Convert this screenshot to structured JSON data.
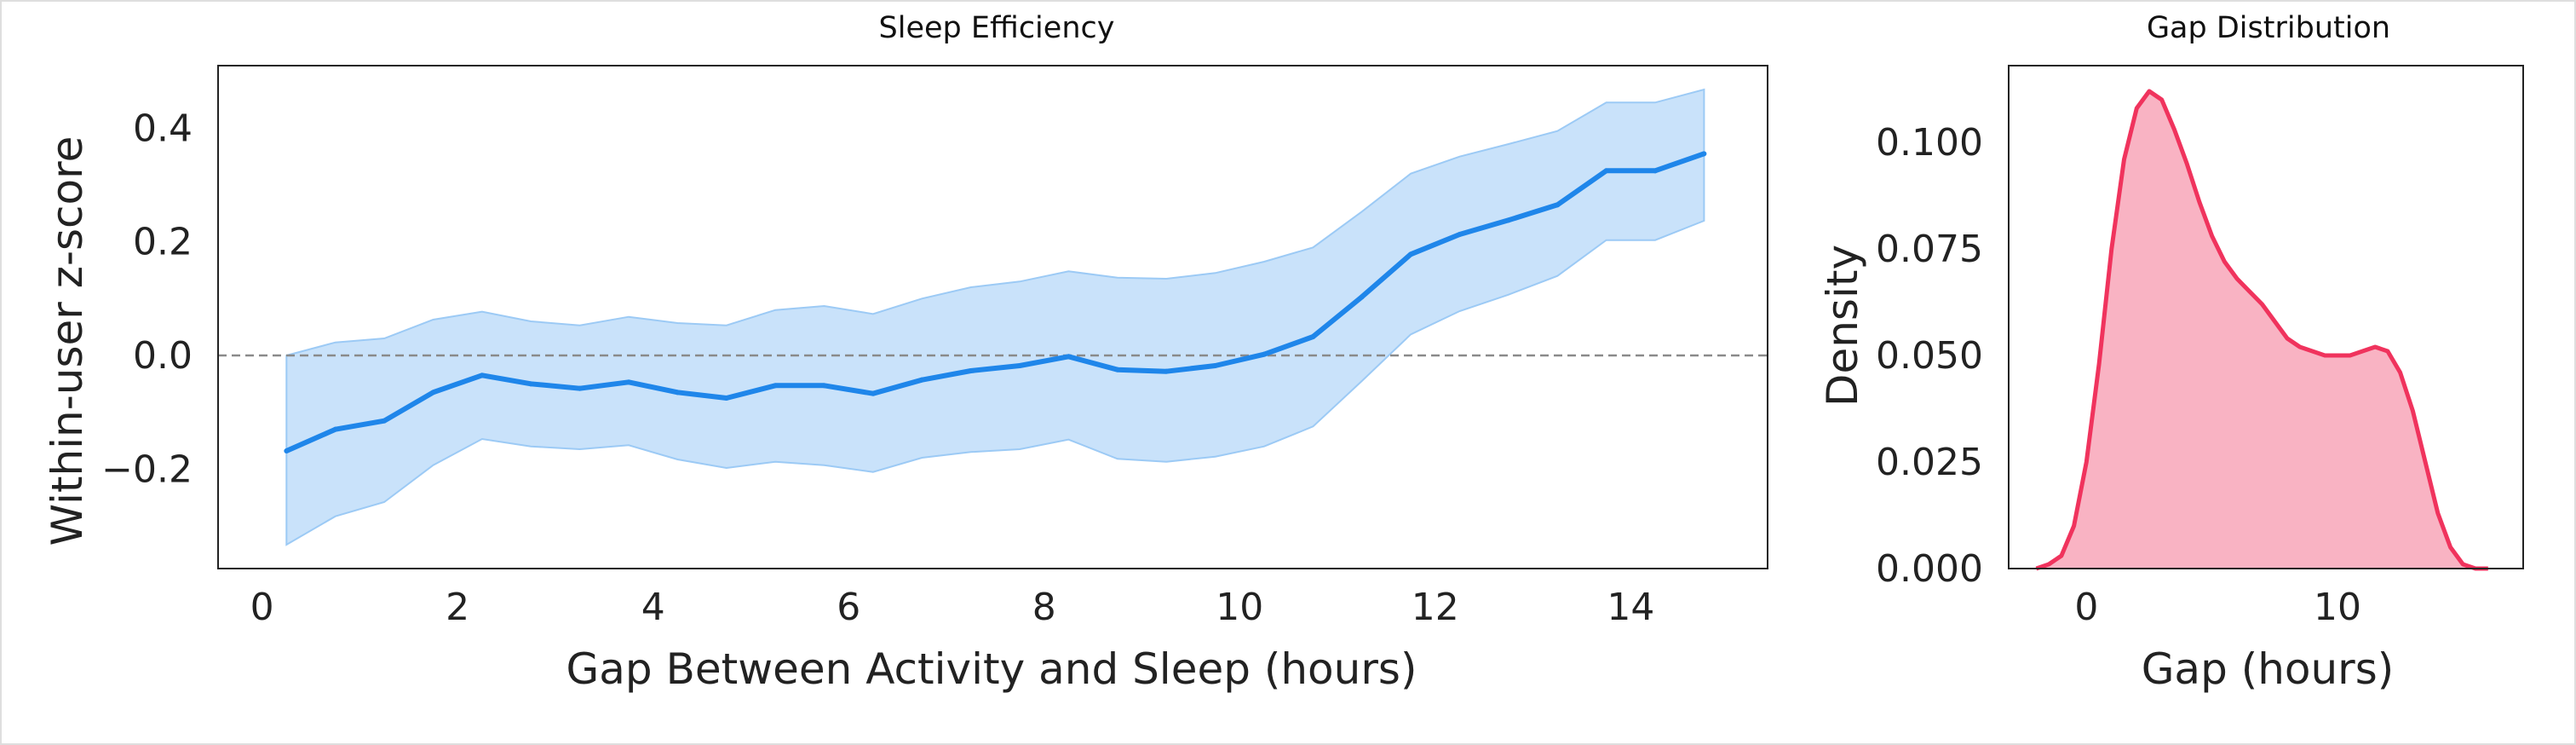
{
  "colors": {
    "main_line": "#1f86ea",
    "main_band": "#c9e2fa",
    "main_band_edge": "#9ccaf5",
    "zero_line": "#8a8a8a",
    "kde_line": "#f0335d",
    "kde_fill": "#f9b3c3",
    "axes_border": "#222222"
  },
  "chart_data": [
    {
      "type": "line",
      "title": "Sleep Efficiency",
      "xlabel": "Gap Between Activity and Sleep (hours)",
      "ylabel": "Within-user z-score",
      "xlim": [
        -0.45,
        15.4
      ],
      "ylim": [
        -0.375,
        0.51
      ],
      "xticks": [
        0,
        2,
        4,
        6,
        8,
        10,
        12,
        14
      ],
      "xtick_labels": [
        "0",
        "2",
        "4",
        "6",
        "8",
        "10",
        "12",
        "14"
      ],
      "yticks": [
        -0.2,
        0.0,
        0.2,
        0.4
      ],
      "ytick_labels": [
        "−0.2",
        "0.0",
        "0.2",
        "0.4"
      ],
      "reference_line": {
        "y": 0.0,
        "style": "dashed"
      },
      "grid": false,
      "x": [
        0.25,
        0.75,
        1.25,
        1.75,
        2.25,
        2.75,
        3.25,
        3.75,
        4.25,
        4.75,
        5.25,
        5.75,
        6.25,
        6.75,
        7.25,
        7.75,
        8.25,
        8.75,
        9.25,
        9.75,
        10.25,
        10.75,
        11.25,
        11.75,
        12.25,
        12.75,
        13.25,
        13.75,
        14.25,
        14.75
      ],
      "mean": [
        -0.168,
        -0.13,
        -0.115,
        -0.065,
        -0.035,
        -0.05,
        -0.058,
        -0.047,
        -0.065,
        -0.075,
        -0.053,
        -0.053,
        -0.067,
        -0.043,
        -0.027,
        -0.018,
        -0.002,
        -0.025,
        -0.028,
        -0.018,
        0.002,
        0.033,
        0.103,
        0.178,
        0.213,
        0.238,
        0.265,
        0.325,
        0.325,
        0.355
      ],
      "ci_upper": [
        0.0,
        0.023,
        0.03,
        0.063,
        0.077,
        0.06,
        0.053,
        0.068,
        0.057,
        0.053,
        0.08,
        0.087,
        0.073,
        0.1,
        0.12,
        0.13,
        0.148,
        0.137,
        0.135,
        0.145,
        0.165,
        0.19,
        0.253,
        0.32,
        0.35,
        0.372,
        0.395,
        0.445,
        0.445,
        0.468
      ],
      "ci_lower": [
        -0.333,
        -0.283,
        -0.258,
        -0.193,
        -0.147,
        -0.16,
        -0.165,
        -0.158,
        -0.183,
        -0.198,
        -0.187,
        -0.193,
        -0.205,
        -0.18,
        -0.17,
        -0.165,
        -0.148,
        -0.182,
        -0.187,
        -0.178,
        -0.16,
        -0.125,
        -0.045,
        0.037,
        0.078,
        0.107,
        0.14,
        0.203,
        0.203,
        0.237
      ]
    },
    {
      "type": "area",
      "title": "Gap Distribution",
      "xlabel": "Gap (hours)",
      "ylabel": "Density",
      "xlim": [
        -3.1,
        17.4
      ],
      "ylim": [
        0.0,
        0.118
      ],
      "xticks": [
        0,
        10
      ],
      "xtick_labels": [
        "0",
        "10"
      ],
      "yticks": [
        0.0,
        0.025,
        0.05,
        0.075,
        0.1
      ],
      "ytick_labels": [
        "0.000",
        "0.025",
        "0.050",
        "0.075",
        "0.100"
      ],
      "grid": false,
      "x": [
        -2.0,
        -1.5,
        -1.0,
        -0.5,
        0.0,
        0.5,
        1.0,
        1.5,
        2.0,
        2.5,
        3.0,
        3.5,
        4.0,
        4.5,
        5.0,
        5.5,
        6.0,
        6.5,
        7.0,
        7.5,
        8.0,
        8.5,
        9.0,
        9.5,
        10.0,
        10.5,
        11.0,
        11.5,
        12.0,
        12.5,
        13.0,
        13.5,
        14.0,
        14.5,
        15.0,
        15.5,
        16.0
      ],
      "density": [
        0.0,
        0.001,
        0.003,
        0.01,
        0.025,
        0.048,
        0.075,
        0.096,
        0.108,
        0.112,
        0.11,
        0.103,
        0.095,
        0.086,
        0.078,
        0.072,
        0.068,
        0.065,
        0.062,
        0.058,
        0.054,
        0.052,
        0.051,
        0.05,
        0.05,
        0.05,
        0.051,
        0.052,
        0.051,
        0.046,
        0.037,
        0.025,
        0.013,
        0.005,
        0.001,
        0.0,
        0.0
      ]
    }
  ]
}
